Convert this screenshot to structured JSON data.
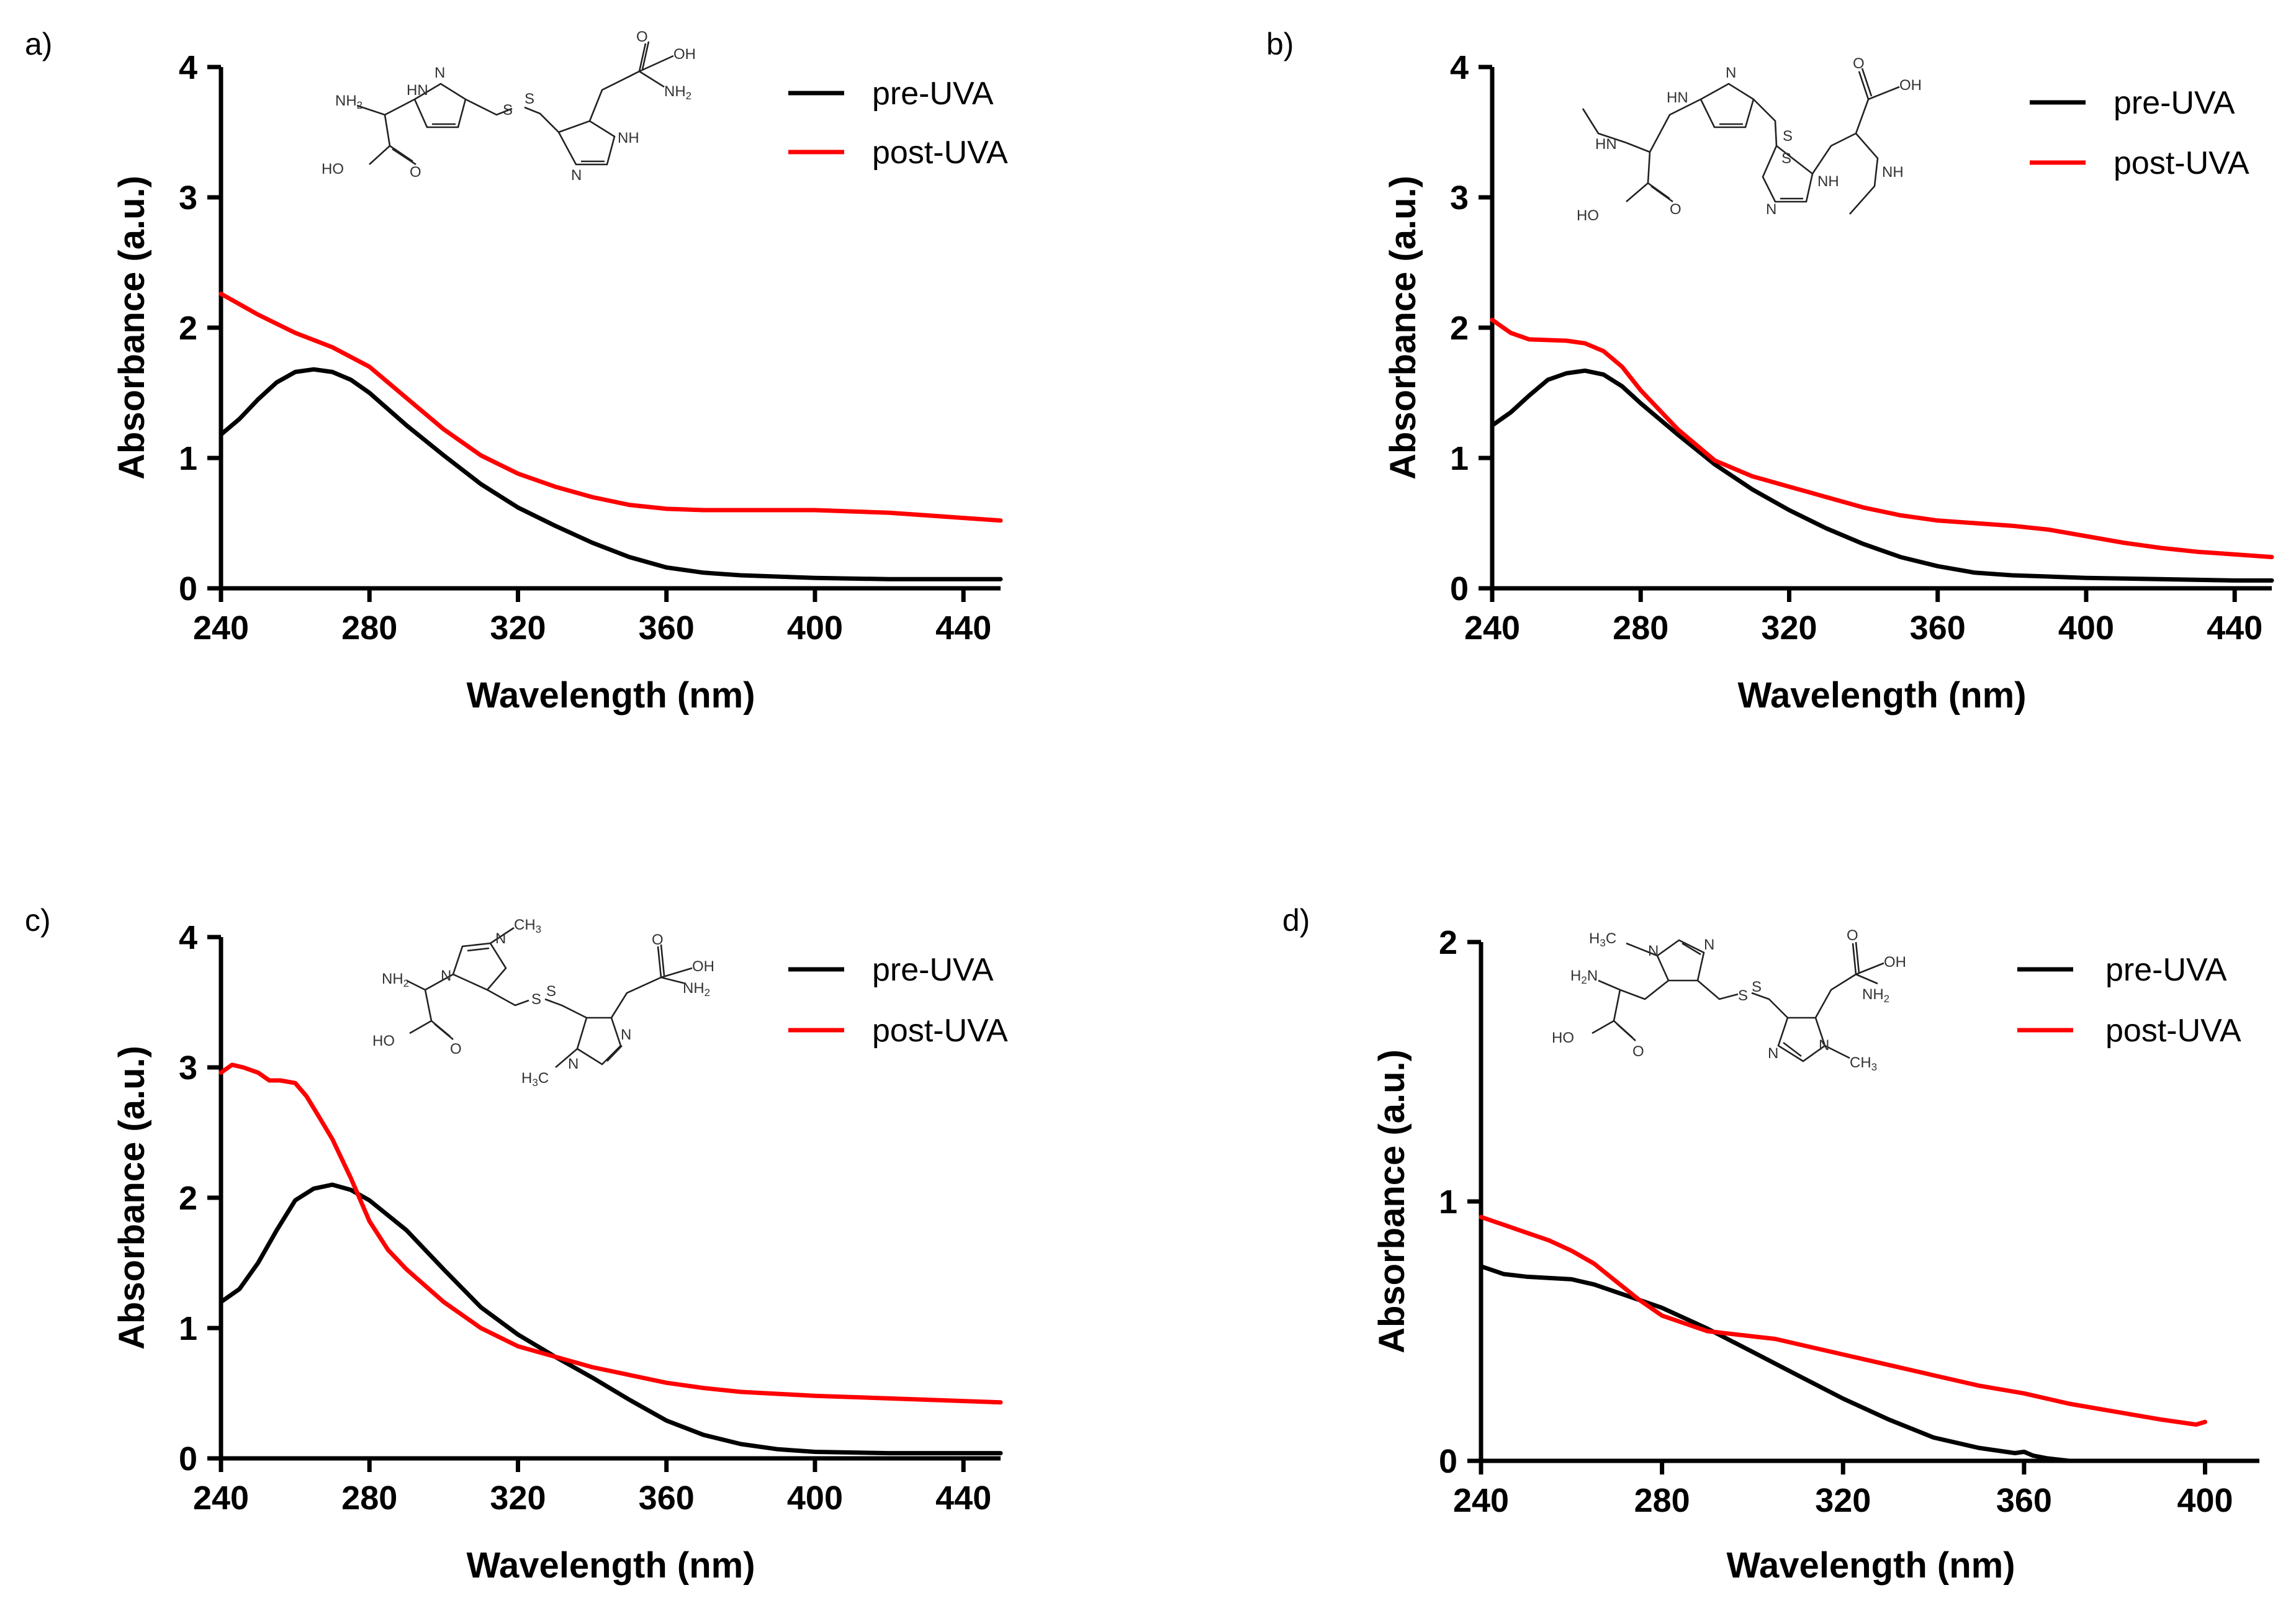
{
  "colors": {
    "pre_uva": "#000000",
    "post_uva": "#ff0000"
  },
  "chart_data": [
    {
      "panel": "a)",
      "type": "line",
      "xlabel": "Wavelength (nm)",
      "ylabel": "Absorbance (a.u.)",
      "xlim": [
        240,
        450
      ],
      "ylim": [
        0,
        4
      ],
      "xticks": [
        240,
        280,
        320,
        360,
        400,
        440
      ],
      "yticks": [
        0,
        1,
        2,
        3,
        4
      ],
      "legend": [
        "pre-UVA",
        "post-UVA"
      ],
      "legend_position": "top-right",
      "molecule": "ergothioneine-disulfide",
      "series": [
        {
          "name": "pre-UVA",
          "color": "#000000",
          "x": [
            240,
            245,
            250,
            255,
            260,
            265,
            270,
            275,
            280,
            290,
            300,
            310,
            320,
            330,
            340,
            350,
            360,
            370,
            380,
            400,
            420,
            440,
            450
          ],
          "y": [
            1.18,
            1.3,
            1.45,
            1.58,
            1.66,
            1.68,
            1.66,
            1.6,
            1.5,
            1.25,
            1.02,
            0.8,
            0.62,
            0.48,
            0.35,
            0.24,
            0.16,
            0.12,
            0.1,
            0.08,
            0.07,
            0.07,
            0.07
          ]
        },
        {
          "name": "post-UVA",
          "color": "#ff0000",
          "x": [
            240,
            250,
            260,
            270,
            280,
            290,
            300,
            310,
            320,
            330,
            340,
            350,
            360,
            370,
            380,
            400,
            420,
            440,
            450
          ],
          "y": [
            2.26,
            2.1,
            1.96,
            1.85,
            1.7,
            1.46,
            1.22,
            1.02,
            0.88,
            0.78,
            0.7,
            0.64,
            0.61,
            0.6,
            0.6,
            0.6,
            0.58,
            0.54,
            0.52
          ]
        }
      ]
    },
    {
      "panel": "b)",
      "type": "line",
      "xlabel": "Wavelength (nm)",
      "ylabel": "Absorbance (a.u.)",
      "xlim": [
        240,
        450
      ],
      "ylim": [
        0,
        4
      ],
      "xticks": [
        240,
        280,
        320,
        360,
        400,
        440
      ],
      "yticks": [
        0,
        1,
        2,
        3,
        4
      ],
      "legend": [
        "pre-UVA",
        "post-UVA"
      ],
      "legend_position": "top-right",
      "molecule": "N-methyl-disulfide",
      "series": [
        {
          "name": "pre-UVA",
          "color": "#000000",
          "x": [
            240,
            245,
            250,
            255,
            260,
            265,
            270,
            275,
            280,
            290,
            300,
            310,
            320,
            330,
            340,
            350,
            360,
            370,
            380,
            400,
            420,
            440,
            450
          ],
          "y": [
            1.25,
            1.35,
            1.48,
            1.6,
            1.65,
            1.67,
            1.64,
            1.55,
            1.42,
            1.18,
            0.95,
            0.76,
            0.6,
            0.46,
            0.34,
            0.24,
            0.17,
            0.12,
            0.1,
            0.08,
            0.07,
            0.06,
            0.06
          ]
        },
        {
          "name": "post-UVA",
          "color": "#ff0000",
          "x": [
            240,
            245,
            250,
            260,
            265,
            270,
            275,
            280,
            290,
            300,
            310,
            320,
            330,
            340,
            350,
            360,
            370,
            380,
            390,
            400,
            410,
            420,
            430,
            440,
            450
          ],
          "y": [
            2.06,
            1.96,
            1.91,
            1.9,
            1.88,
            1.82,
            1.7,
            1.52,
            1.22,
            0.98,
            0.86,
            0.78,
            0.7,
            0.62,
            0.56,
            0.52,
            0.5,
            0.48,
            0.45,
            0.4,
            0.35,
            0.31,
            0.28,
            0.26,
            0.24
          ]
        }
      ]
    },
    {
      "panel": "c)",
      "type": "line",
      "xlabel": "Wavelength (nm)",
      "ylabel": "Absorbance (a.u.)",
      "xlim": [
        240,
        450
      ],
      "ylim": [
        0,
        4
      ],
      "xticks": [
        240,
        280,
        320,
        360,
        400,
        440
      ],
      "yticks": [
        0,
        1,
        2,
        3,
        4
      ],
      "legend": [
        "pre-UVA",
        "post-UVA"
      ],
      "legend_position": "top-right",
      "molecule": "ring-N-methyl-disulfide",
      "series": [
        {
          "name": "pre-UVA",
          "color": "#000000",
          "x": [
            240,
            245,
            250,
            255,
            260,
            265,
            270,
            275,
            280,
            290,
            300,
            310,
            320,
            330,
            340,
            350,
            360,
            370,
            380,
            390,
            400,
            420,
            440,
            450
          ],
          "y": [
            1.2,
            1.3,
            1.5,
            1.75,
            1.98,
            2.07,
            2.1,
            2.06,
            1.98,
            1.75,
            1.45,
            1.16,
            0.95,
            0.78,
            0.62,
            0.45,
            0.29,
            0.18,
            0.11,
            0.07,
            0.05,
            0.04,
            0.04,
            0.04
          ]
        },
        {
          "name": "post-UVA",
          "color": "#ff0000",
          "x": [
            240,
            243,
            246,
            250,
            253,
            256,
            260,
            263,
            266,
            270,
            275,
            280,
            285,
            290,
            300,
            310,
            320,
            330,
            340,
            350,
            360,
            370,
            380,
            400,
            420,
            440,
            450
          ],
          "y": [
            2.96,
            3.02,
            3.0,
            2.96,
            2.9,
            2.9,
            2.88,
            2.78,
            2.64,
            2.45,
            2.15,
            1.82,
            1.6,
            1.45,
            1.2,
            1.0,
            0.86,
            0.78,
            0.7,
            0.64,
            0.58,
            0.54,
            0.51,
            0.48,
            0.46,
            0.44,
            0.43
          ]
        }
      ]
    },
    {
      "panel": "d)",
      "type": "line",
      "xlabel": "Wavelength (nm)",
      "ylabel": "Absorbance (a.u.)",
      "xlim": [
        240,
        412
      ],
      "ylim": [
        0,
        2
      ],
      "xticks": [
        240,
        280,
        320,
        360,
        400
      ],
      "yticks": [
        0,
        1,
        2
      ],
      "legend": [
        "pre-UVA",
        "post-UVA"
      ],
      "legend_position": "top-right",
      "molecule": "ring-N-methyl-disulfide-alt",
      "series": [
        {
          "name": "pre-UVA",
          "color": "#000000",
          "x": [
            240,
            245,
            250,
            260,
            265,
            270,
            275,
            280,
            290,
            300,
            310,
            320,
            330,
            340,
            350,
            358,
            360,
            362,
            365,
            370,
            380,
            390,
            400,
            410
          ],
          "y": [
            0.75,
            0.72,
            0.71,
            0.7,
            0.68,
            0.65,
            0.62,
            0.59,
            0.51,
            0.42,
            0.33,
            0.24,
            0.16,
            0.09,
            0.05,
            0.03,
            0.035,
            0.02,
            0.01,
            0.0,
            0.0,
            0.0,
            0.0,
            0.0
          ]
        },
        {
          "name": "post-UVA",
          "color": "#ff0000",
          "x": [
            240,
            245,
            250,
            255,
            260,
            265,
            270,
            275,
            280,
            285,
            290,
            295,
            300,
            305,
            310,
            320,
            330,
            340,
            350,
            360,
            370,
            380,
            390,
            398,
            400
          ],
          "y": [
            0.94,
            0.91,
            0.88,
            0.85,
            0.81,
            0.76,
            0.69,
            0.62,
            0.56,
            0.53,
            0.5,
            0.49,
            0.48,
            0.47,
            0.45,
            0.41,
            0.37,
            0.33,
            0.29,
            0.26,
            0.22,
            0.19,
            0.16,
            0.14,
            0.15
          ]
        }
      ]
    }
  ]
}
